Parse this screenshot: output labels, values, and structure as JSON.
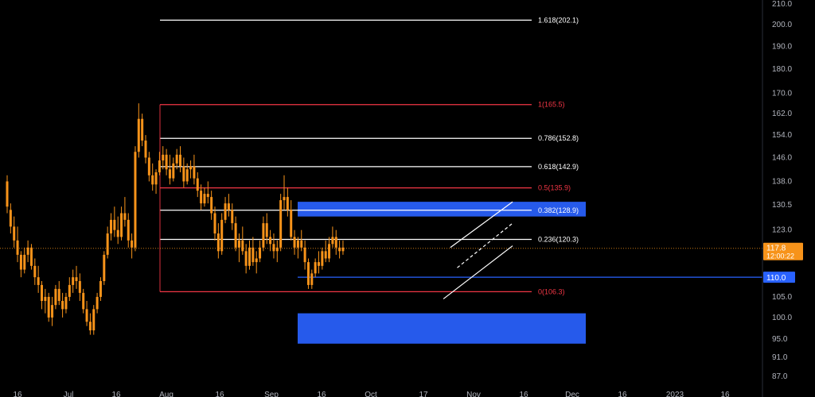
{
  "chart_data": {
    "type": "candlestick",
    "title": "",
    "y_axis": {
      "ticks": [
        210.0,
        200.0,
        190.0,
        180.0,
        170.0,
        162.0,
        154.0,
        146.0,
        138.0,
        130.5,
        123.0,
        110.0,
        105.0,
        100.0,
        95.0,
        91.0,
        87.0
      ],
      "tick_labels": [
        "210.0",
        "200.0",
        "190.0",
        "180.0",
        "170.0",
        "162.0",
        "154.0",
        "146.0",
        "138.0",
        "130.5",
        "123.0",
        "110.0",
        "105.0",
        "100.0",
        "95.0",
        "91.0",
        "87.0"
      ],
      "scale": "log",
      "range": [
        85.0,
        215.0
      ]
    },
    "x_axis": {
      "tick_labels": [
        "16",
        "Jul",
        "16",
        "Aug",
        "16",
        "Sep",
        "16",
        "Oct",
        "17",
        "Nov",
        "16",
        "Dec",
        "16",
        "2023",
        "16"
      ]
    },
    "last_price": {
      "label": "117.8",
      "countdown": "12:00:22",
      "value": 117.8,
      "color": "#f7931a"
    },
    "level_marker": {
      "label": "110.0",
      "value": 110.0,
      "color": "#2962ff"
    },
    "fib_levels": [
      {
        "label": "1.618(202.1)",
        "value": 202.1,
        "color": "#ffffff"
      },
      {
        "label": "1(165.5)",
        "value": 165.5,
        "color": "#f23645"
      },
      {
        "label": "0.786(152.8)",
        "value": 152.8,
        "color": "#ffffff"
      },
      {
        "label": "0.618(142.9)",
        "value": 142.9,
        "color": "#ffffff"
      },
      {
        "label": "0.5(135.9)",
        "value": 135.9,
        "color": "#f23645"
      },
      {
        "label": "0.382(128.9)",
        "value": 128.9,
        "color": "#ffffff"
      },
      {
        "label": "0.236(120.3)",
        "value": 120.3,
        "color": "#ffffff"
      },
      {
        "label": "0(106.3)",
        "value": 106.3,
        "color": "#f23645"
      }
    ],
    "zones": [
      {
        "name": "resistance-zone",
        "price_low": 127.0,
        "price_high": 131.5,
        "color": "#2962ff"
      },
      {
        "name": "support-zone",
        "price_low": 94.0,
        "price_high": 101.0,
        "color": "#2962ff"
      }
    ],
    "channel": {
      "upper": [
        {
          "day": 128,
          "price": 118.0
        },
        {
          "day": 146,
          "price": 131.5
        }
      ],
      "lower": [
        {
          "day": 126,
          "price": 104.5
        },
        {
          "day": 146,
          "price": 118.5
        }
      ],
      "mid": [
        {
          "day": 130,
          "price": 112.5
        },
        {
          "day": 146,
          "price": 125.0
        }
      ]
    },
    "series": {
      "colors": {
        "body": "#f7931a",
        "wick": "#f7931a"
      },
      "ohlc": [
        [
          138,
          140,
          128,
          130
        ],
        [
          129,
          131,
          122,
          124
        ],
        [
          124,
          127,
          118,
          120
        ],
        [
          120,
          124,
          114,
          116
        ],
        [
          116,
          117,
          110,
          112
        ],
        [
          112,
          118,
          111,
          116
        ],
        [
          116,
          120,
          114,
          118
        ],
        [
          118,
          119,
          112,
          113
        ],
        [
          113,
          115,
          108,
          110
        ],
        [
          110,
          113,
          106,
          108
        ],
        [
          108,
          109,
          102,
          104
        ],
        [
          104,
          107,
          101,
          105
        ],
        [
          105,
          106,
          99,
          100
        ],
        [
          100,
          105,
          98,
          103
        ],
        [
          103,
          108,
          102,
          107
        ],
        [
          107,
          109,
          103,
          104
        ],
        [
          104,
          106,
          100,
          102
        ],
        [
          102,
          106,
          101,
          105
        ],
        [
          105,
          110,
          104,
          108
        ],
        [
          108,
          112,
          106,
          110
        ],
        [
          110,
          113,
          107,
          109
        ],
        [
          109,
          111,
          104,
          106
        ],
        [
          106,
          107,
          101,
          102
        ],
        [
          102,
          104,
          98,
          99
        ],
        [
          99,
          101,
          96,
          97
        ],
        [
          97,
          103,
          96,
          102
        ],
        [
          102,
          106,
          101,
          105
        ],
        [
          105,
          110,
          104,
          109
        ],
        [
          109,
          117,
          108,
          116
        ],
        [
          116,
          124,
          115,
          122
        ],
        [
          122,
          128,
          120,
          126
        ],
        [
          126,
          130,
          121,
          123
        ],
        [
          123,
          127,
          119,
          121
        ],
        [
          121,
          130,
          120,
          128
        ],
        [
          128,
          133,
          124,
          126
        ],
        [
          126,
          128,
          118,
          120
        ],
        [
          120,
          122,
          115,
          118
        ],
        [
          118,
          150,
          117,
          148
        ],
        [
          148,
          166,
          146,
          160
        ],
        [
          160,
          162,
          150,
          152
        ],
        [
          152,
          154,
          144,
          146
        ],
        [
          146,
          148,
          138,
          140
        ],
        [
          140,
          144,
          135,
          137
        ],
        [
          137,
          142,
          134,
          141
        ],
        [
          141,
          148,
          140,
          145
        ],
        [
          145,
          150,
          142,
          147
        ],
        [
          147,
          149,
          140,
          142
        ],
        [
          142,
          147,
          137,
          139
        ],
        [
          139,
          146,
          138,
          144
        ],
        [
          144,
          149,
          142,
          147
        ],
        [
          147,
          150,
          141,
          143
        ],
        [
          143,
          146,
          136,
          138
        ],
        [
          138,
          144,
          137,
          142
        ],
        [
          142,
          145,
          139,
          143
        ],
        [
          143,
          147,
          137,
          139
        ],
        [
          139,
          141,
          133,
          135
        ],
        [
          135,
          137,
          129,
          131
        ],
        [
          131,
          136,
          130,
          134
        ],
        [
          134,
          138,
          131,
          133
        ],
        [
          133,
          135,
          126,
          128
        ],
        [
          128,
          130,
          120,
          122
        ],
        [
          122,
          125,
          115,
          117
        ],
        [
          117,
          128,
          116,
          126
        ],
        [
          126,
          133,
          125,
          131
        ],
        [
          131,
          134,
          127,
          129
        ],
        [
          129,
          131,
          123,
          125
        ],
        [
          125,
          127,
          117,
          118
        ],
        [
          118,
          122,
          114,
          120
        ],
        [
          120,
          124,
          116,
          117
        ],
        [
          117,
          119,
          111,
          113
        ],
        [
          113,
          120,
          112,
          118
        ],
        [
          118,
          121,
          113,
          114
        ],
        [
          114,
          117,
          111,
          115
        ],
        [
          115,
          120,
          114,
          118
        ],
        [
          118,
          127,
          117,
          125
        ],
        [
          125,
          128,
          119,
          121
        ],
        [
          121,
          123,
          117,
          119
        ],
        [
          119,
          122,
          115,
          117
        ],
        [
          117,
          120,
          114,
          118
        ],
        [
          118,
          134,
          117,
          132
        ],
        [
          132,
          140,
          129,
          133
        ],
        [
          133,
          136,
          127,
          129
        ],
        [
          129,
          132,
          120,
          121
        ],
        [
          121,
          123,
          116,
          118
        ],
        [
          118,
          121,
          115,
          120
        ],
        [
          120,
          123,
          117,
          118
        ],
        [
          118,
          120,
          112,
          114
        ],
        [
          114,
          115,
          107,
          108
        ],
        [
          108,
          112,
          107,
          111
        ],
        [
          111,
          115,
          110,
          114
        ],
        [
          114,
          117,
          111,
          113
        ],
        [
          113,
          118,
          112,
          117
        ],
        [
          117,
          120,
          114,
          115
        ],
        [
          115,
          121,
          114,
          119
        ],
        [
          119,
          124,
          118,
          121
        ],
        [
          121,
          123,
          116,
          118
        ],
        [
          118,
          120,
          115,
          117
        ],
        [
          117,
          120,
          116,
          118
        ]
      ]
    }
  }
}
